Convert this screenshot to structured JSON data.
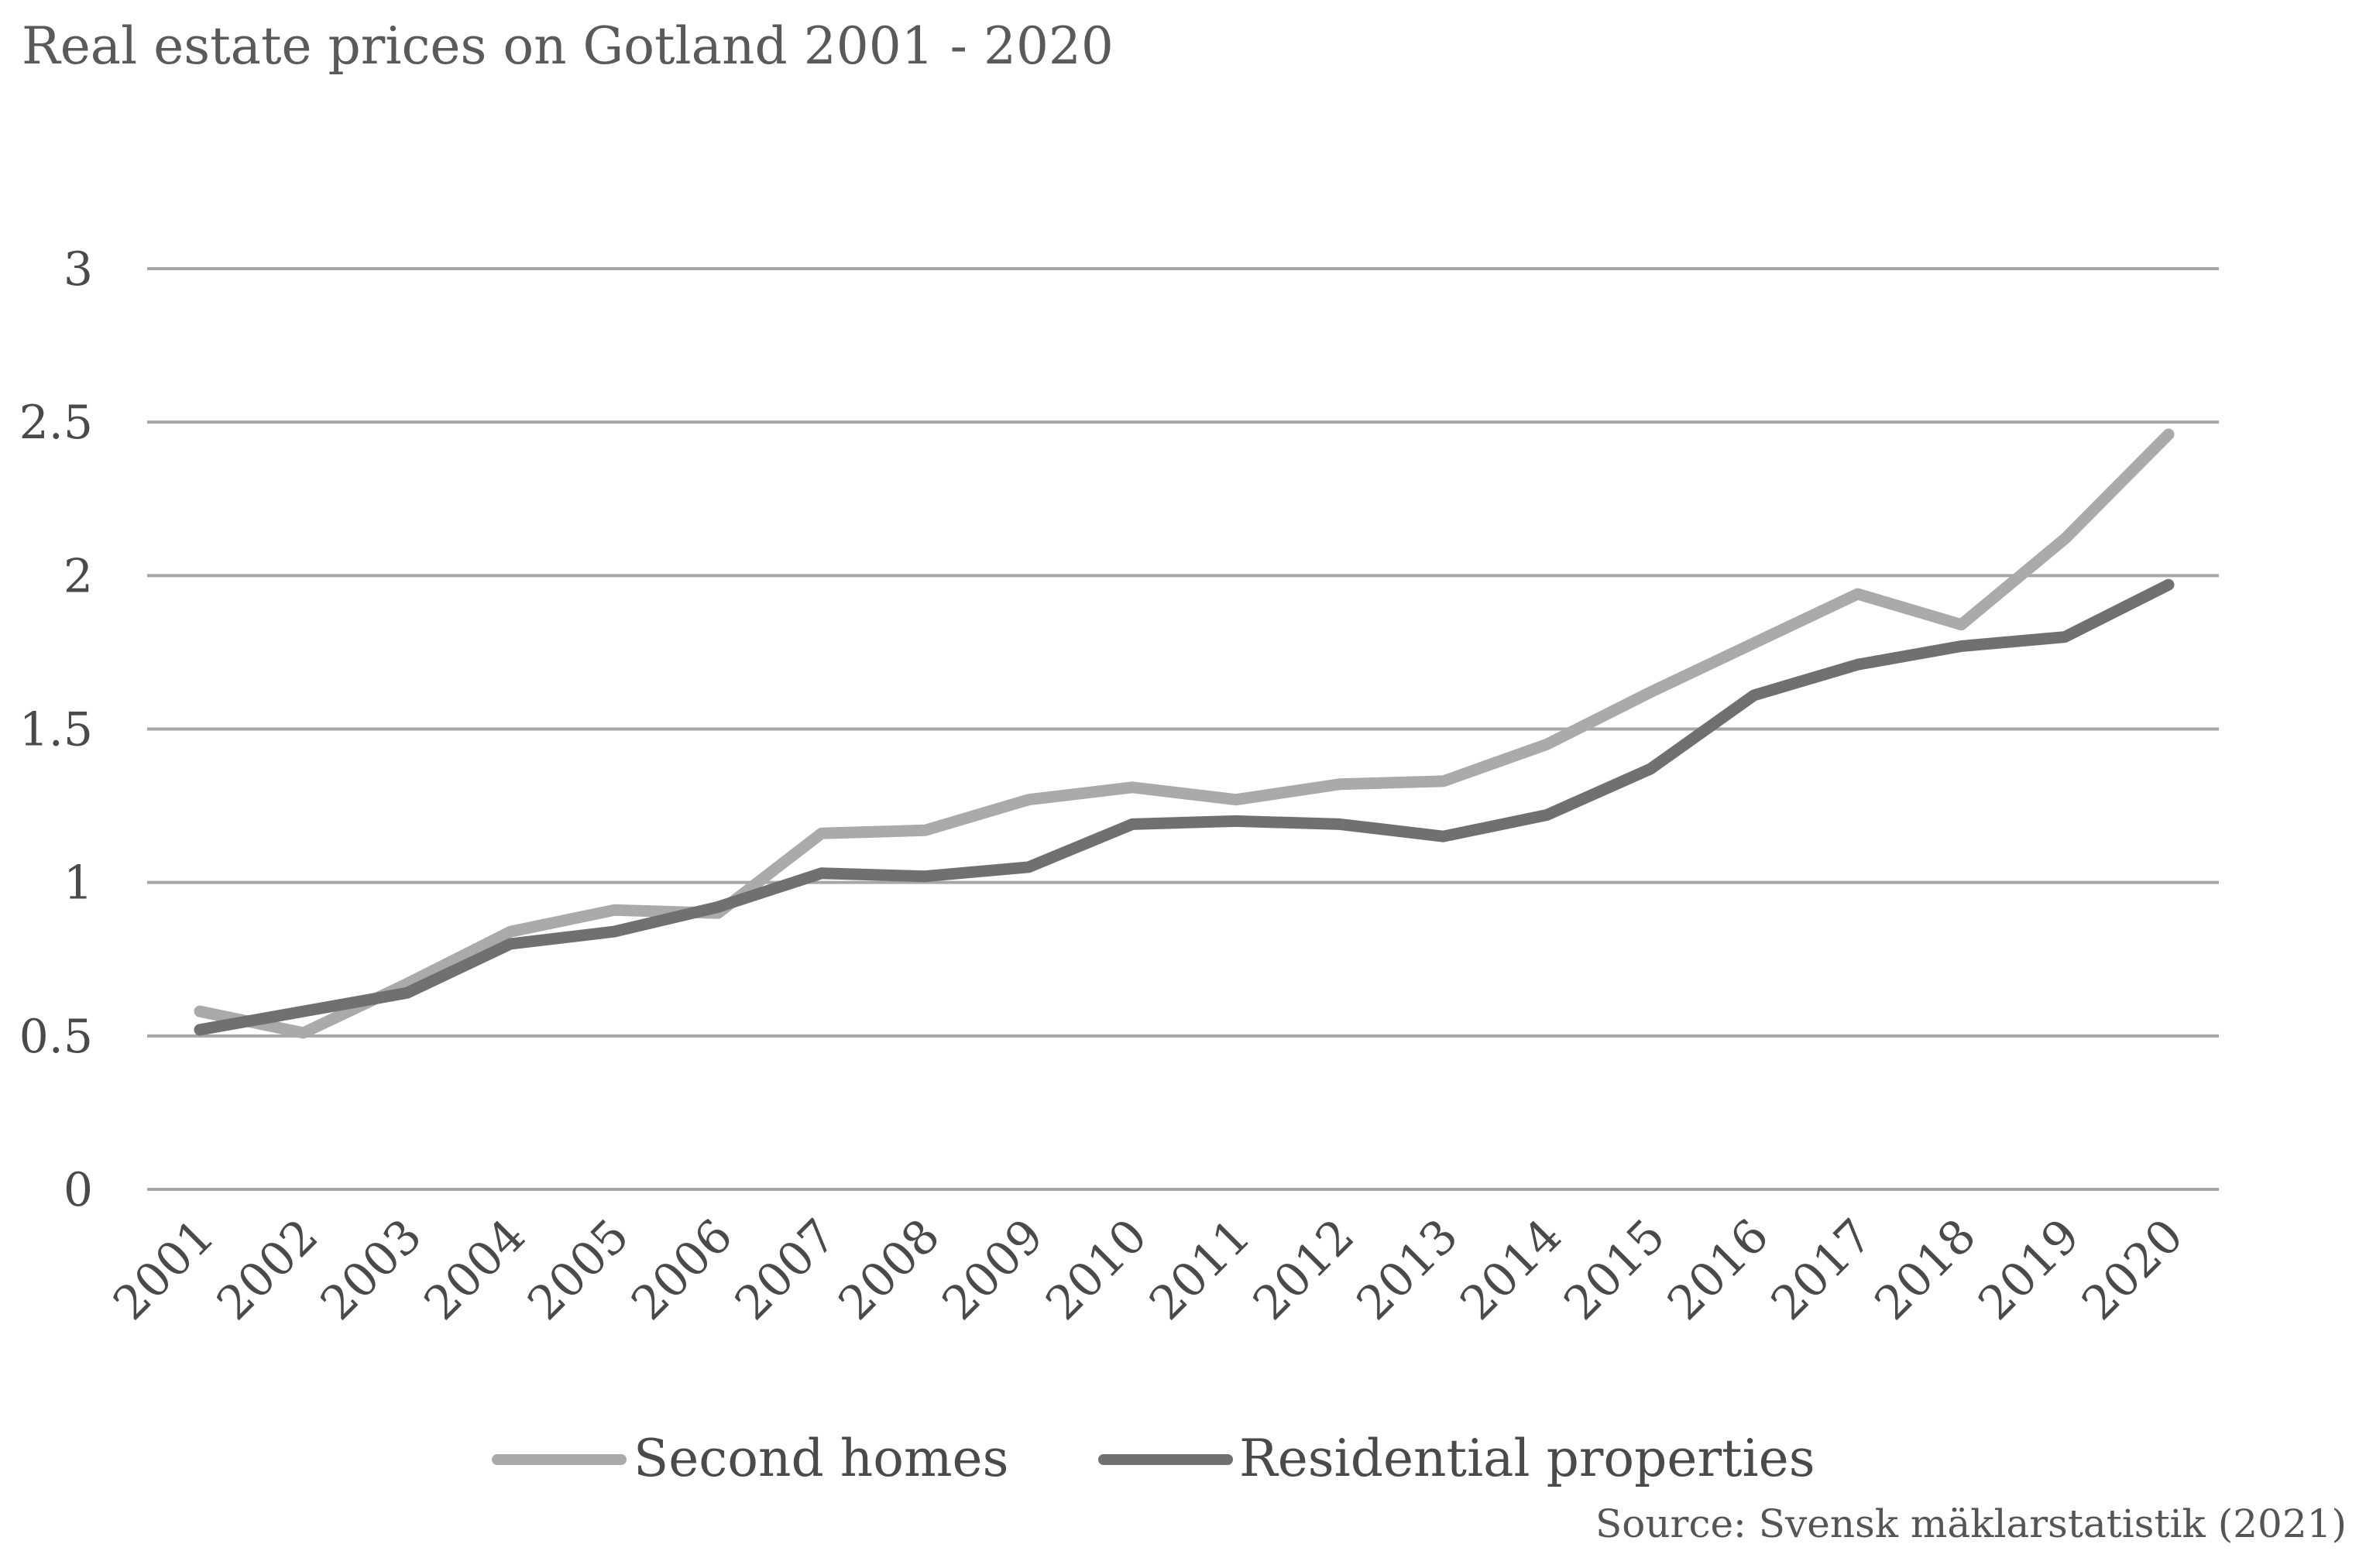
{
  "chart_data": {
    "type": "line",
    "title": "Real estate prices on Gotland 2001 - 2020",
    "xlabel": "",
    "ylabel": "",
    "categories": [
      "2001",
      "2002",
      "2003",
      "2004",
      "2005",
      "2006",
      "2007",
      "2008",
      "2009",
      "2010",
      "2011",
      "2012",
      "2013",
      "2014",
      "2015",
      "2016",
      "2017",
      "2018",
      "2019",
      "2020"
    ],
    "yticks": [
      "0",
      "0.5",
      "1",
      "1.5",
      "2",
      "2.5",
      "3"
    ],
    "ylim": [
      0,
      3
    ],
    "grid": true,
    "legend_position": "bottom",
    "series": [
      {
        "name": "Second homes",
        "color": "#aaaaaa",
        "values": [
          0.58,
          0.51,
          0.67,
          0.84,
          0.91,
          0.9,
          1.16,
          1.17,
          1.27,
          1.31,
          1.27,
          1.32,
          1.33,
          1.45,
          1.62,
          1.78,
          1.94,
          1.84,
          2.12,
          2.46
        ]
      },
      {
        "name": "Residential properties",
        "color": "#707070",
        "values": [
          0.52,
          0.58,
          0.64,
          0.8,
          0.84,
          0.92,
          1.03,
          1.02,
          1.05,
          1.19,
          1.2,
          1.19,
          1.15,
          1.22,
          1.37,
          1.61,
          1.71,
          1.77,
          1.8,
          1.97
        ]
      }
    ],
    "source": "Source: Svensk mäklarstatistik (2021)"
  }
}
